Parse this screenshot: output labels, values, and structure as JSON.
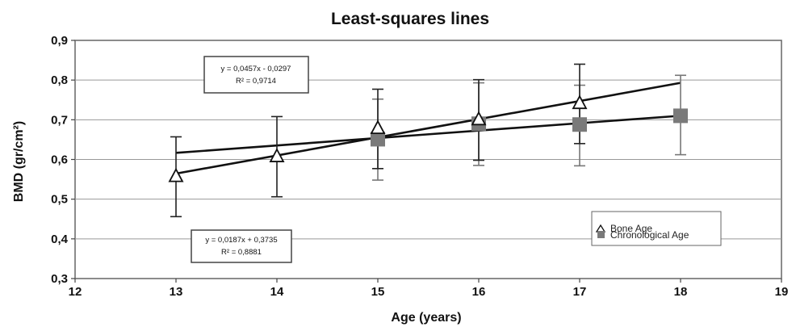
{
  "chart_data": {
    "type": "scatter",
    "title": "Least-squares lines",
    "xlabel": "Age (years)",
    "ylabel": "BMD (gr/cm²)",
    "xlim": [
      12,
      19
    ],
    "ylim": [
      0.3,
      0.9
    ],
    "x_ticks": [
      "12",
      "13",
      "14",
      "15",
      "16",
      "17",
      "18",
      "19"
    ],
    "y_ticks": [
      "0,3",
      "0,4",
      "0,5",
      "0,6",
      "0,7",
      "0,8",
      "0,9"
    ],
    "grid": "horizontal",
    "legend_position": "bottom-right",
    "series": [
      {
        "name": "Bone Age",
        "marker": "triangle",
        "color": "#111111",
        "x": [
          13,
          14,
          15,
          16,
          17
        ],
        "y": [
          0.557,
          0.607,
          0.678,
          0.7,
          0.741
        ],
        "error_low": [
          0.456,
          0.506,
          0.577,
          0.598,
          0.64
        ],
        "error_high": [
          0.657,
          0.708,
          0.777,
          0.801,
          0.84
        ],
        "trendline": {
          "slope": 0.0457,
          "intercept": -0.0297,
          "x_range": [
            13,
            18
          ]
        },
        "equation": "y = 0,0457x - 0,0297",
        "r_squared": "R² = 0,9714"
      },
      {
        "name": "Chronological Age",
        "marker": "square",
        "color": "#7a7a7a",
        "x": [
          15,
          16,
          17,
          18
        ],
        "y": [
          0.651,
          0.69,
          0.688,
          0.71
        ],
        "error_low": [
          0.548,
          0.585,
          0.584,
          0.612
        ],
        "error_high": [
          0.752,
          0.793,
          0.787,
          0.812
        ],
        "trendline": {
          "slope": 0.0187,
          "intercept": 0.3735,
          "x_range": [
            13,
            18
          ]
        },
        "equation": "y = 0,0187x + 0,3735",
        "r_squared": "R² = 0,8881"
      }
    ]
  },
  "legend": {
    "items": [
      {
        "symbol": "Δ",
        "label": "Bone Age"
      },
      {
        "symbol": "■",
        "label": "Chronological Age"
      }
    ]
  }
}
